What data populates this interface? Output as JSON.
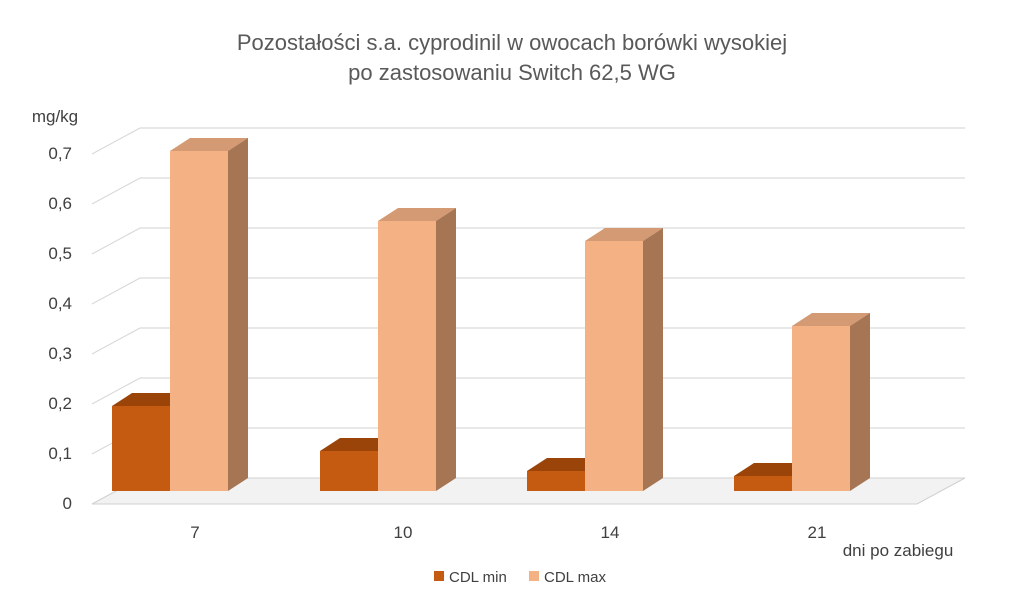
{
  "chart_data": {
    "type": "bar",
    "title": [
      "Pozostałości s.a. cyprodinil w owocach borówki wysokiej",
      "po zastosowaniu Switch 62,5 WG"
    ],
    "ylabel": "mg/kg",
    "xlabel": "dni po zabiegu",
    "categories": [
      "7",
      "10",
      "14",
      "21"
    ],
    "ylim": [
      0,
      0.7
    ],
    "yticks": [
      "0",
      "0,1",
      "0,2",
      "0,3",
      "0,4",
      "0,5",
      "0,6",
      "0,7"
    ],
    "series": [
      {
        "name": "CDL min",
        "values": [
          0.17,
          0.08,
          0.04,
          0.03
        ],
        "color": "#c55a11",
        "top_color": "#9b4409",
        "side_color": "#8c3f0c"
      },
      {
        "name": "CDL max",
        "values": [
          0.68,
          0.54,
          0.5,
          0.33
        ],
        "color": "#f4b183",
        "top_color": "#d49a73",
        "side_color": "#a57554"
      }
    ],
    "grid": true,
    "legend_position": "bottom",
    "style": "3d-column"
  }
}
